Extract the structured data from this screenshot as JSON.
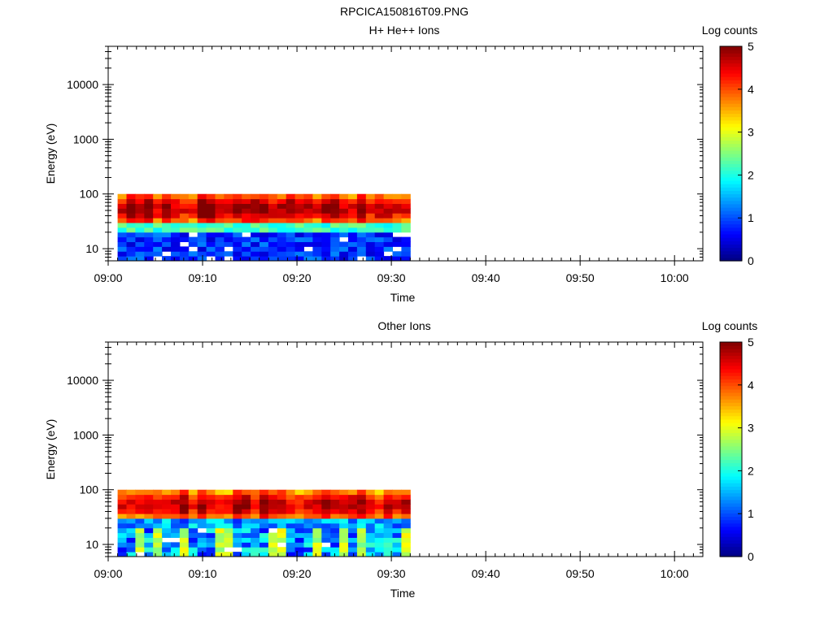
{
  "page_title": "RPCICA150816T09.PNG",
  "chart_data": [
    {
      "type": "heatmap",
      "title": "H+ He++ Ions",
      "xlabel": "Time",
      "ylabel": "Energy (eV)",
      "x_ticks": [
        "09:00",
        "09:10",
        "09:20",
        "09:30",
        "09:40",
        "09:50",
        "10:00"
      ],
      "xlim": [
        "09:00",
        "10:03"
      ],
      "y_scale": "log",
      "ylim": [
        6,
        50000
      ],
      "y_ticks": [
        10,
        100,
        1000,
        10000
      ],
      "data_extent": {
        "x": [
          "09:01",
          "09:32"
        ],
        "y": [
          6,
          100
        ]
      },
      "colorbar": {
        "label": "Log counts",
        "range": [
          0,
          5
        ],
        "ticks": [
          0,
          1,
          2,
          3,
          4,
          5
        ],
        "colormap": "jet"
      },
      "profile": "protons",
      "seed": 7,
      "white_bins": 0.08
    },
    {
      "type": "heatmap",
      "title": "Other Ions",
      "xlabel": "Time",
      "ylabel": "Energy (eV)",
      "x_ticks": [
        "09:00",
        "09:10",
        "09:20",
        "09:30",
        "09:40",
        "09:50",
        "10:00"
      ],
      "xlim": [
        "09:00",
        "10:03"
      ],
      "y_scale": "log",
      "ylim": [
        6,
        50000
      ],
      "y_ticks": [
        10,
        100,
        1000,
        10000
      ],
      "data_extent": {
        "x": [
          "09:01",
          "09:32"
        ],
        "y": [
          6,
          100
        ]
      },
      "colorbar": {
        "label": "Log counts",
        "range": [
          0,
          5
        ],
        "ticks": [
          0,
          1,
          2,
          3,
          4,
          5
        ],
        "colormap": "jet"
      },
      "profile": "other",
      "seed": 21,
      "white_bins": 0.04
    }
  ]
}
